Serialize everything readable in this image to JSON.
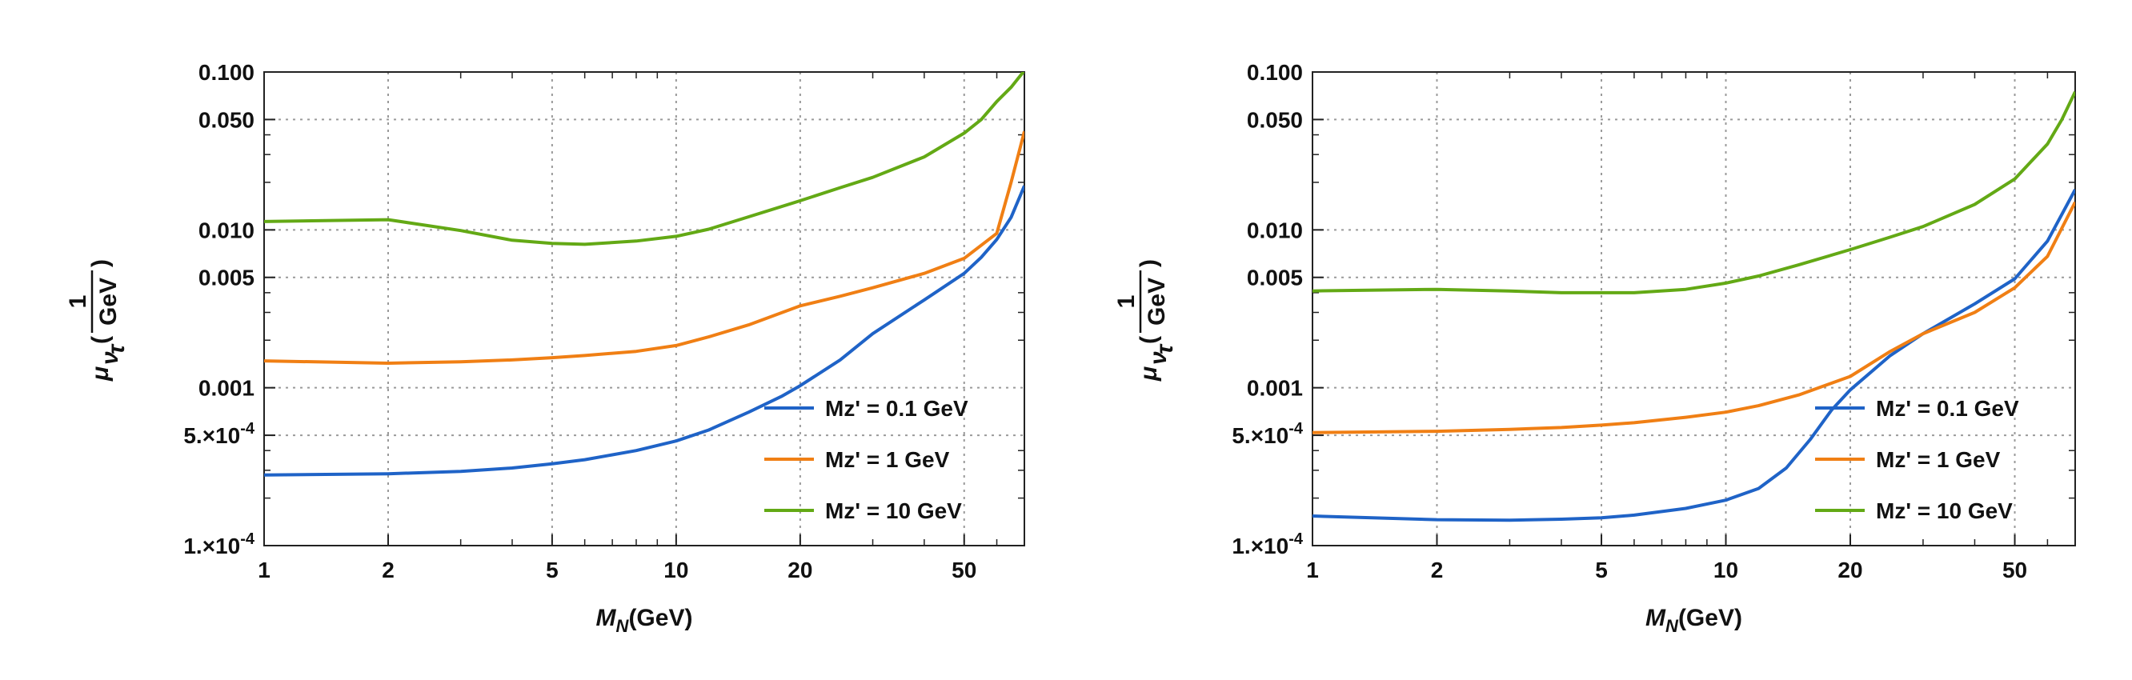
{
  "chart_data": [
    {
      "type": "line",
      "xscale": "log",
      "yscale": "log",
      "xlim": [
        1,
        70
      ],
      "ylim": [
        0.0001,
        0.1
      ],
      "xlabel": "M_N(GeV)",
      "xlabel_main": "M",
      "xlabel_sub": "N",
      "xlabel_rest": "(GeV)",
      "ylabel_top": "1",
      "ylabel_mu": "μ",
      "ylabel_nu": "ν",
      "ylabel_tau": "τ",
      "ylabel_paren_open": "(",
      "ylabel_unit": "GeV",
      "ylabel_paren_close": ")",
      "xticks": [
        {
          "value": 1,
          "label": "1"
        },
        {
          "value": 2,
          "label": "2"
        },
        {
          "value": 5,
          "label": "5"
        },
        {
          "value": 10,
          "label": "10"
        },
        {
          "value": 20,
          "label": "20"
        },
        {
          "value": 50,
          "label": "50"
        }
      ],
      "yticks": [
        {
          "value": 0.1,
          "label": "0.100"
        },
        {
          "value": 0.05,
          "label": "0.050"
        },
        {
          "value": 0.01,
          "label": "0.010"
        },
        {
          "value": 0.005,
          "label": "0.005"
        },
        {
          "value": 0.001,
          "label": "0.001"
        },
        {
          "value": 0.0005,
          "label": "5.×10",
          "exp": "-4"
        },
        {
          "value": 0.0001,
          "label": "1.×10",
          "exp": "-4"
        }
      ],
      "legend_position": "bottom-right",
      "series": [
        {
          "name": "Mz' = 0.1 GeV",
          "color": "#1f63c7",
          "x": [
            1,
            2,
            3,
            4,
            5,
            6,
            8,
            10,
            12,
            15,
            18,
            20,
            25,
            30,
            40,
            50,
            55,
            60,
            65,
            70
          ],
          "y": [
            0.00028,
            0.000285,
            0.000295,
            0.00031,
            0.00033,
            0.00035,
            0.0004,
            0.00046,
            0.00054,
            0.0007,
            0.00088,
            0.00103,
            0.0015,
            0.0022,
            0.0036,
            0.0053,
            0.0067,
            0.0087,
            0.012,
            0.019
          ]
        },
        {
          "name": "Mz' = 1 GeV",
          "color": "#f07f14",
          "x": [
            1,
            2,
            3,
            4,
            5,
            6,
            8,
            10,
            12,
            15,
            20,
            25,
            30,
            40,
            50,
            60,
            65,
            70
          ],
          "y": [
            0.00148,
            0.00143,
            0.00146,
            0.0015,
            0.00155,
            0.0016,
            0.0017,
            0.00185,
            0.0021,
            0.0025,
            0.0033,
            0.0038,
            0.0043,
            0.0053,
            0.0066,
            0.0095,
            0.02,
            0.042
          ]
        },
        {
          "name": "Mz' = 10 GeV",
          "color": "#63a915",
          "x": [
            1,
            2,
            3,
            4,
            5,
            6,
            8,
            10,
            12,
            15,
            20,
            25,
            30,
            40,
            50,
            55,
            60,
            65,
            70
          ],
          "y": [
            0.0113,
            0.0116,
            0.0099,
            0.0086,
            0.0082,
            0.0081,
            0.0085,
            0.0091,
            0.0101,
            0.0121,
            0.0153,
            0.0185,
            0.0215,
            0.029,
            0.041,
            0.05,
            0.065,
            0.08,
            0.102
          ]
        }
      ]
    },
    {
      "type": "line",
      "xscale": "log",
      "yscale": "log",
      "xlim": [
        1,
        70
      ],
      "ylim": [
        0.0001,
        0.1
      ],
      "xlabel": "M_N(GeV)",
      "xlabel_main": "M",
      "xlabel_sub": "N",
      "xlabel_rest": "(GeV)",
      "ylabel_top": "1",
      "ylabel_mu": "μ",
      "ylabel_nu": "ν",
      "ylabel_tau": "τ",
      "ylabel_paren_open": "(",
      "ylabel_unit": "GeV",
      "ylabel_paren_close": ")",
      "xticks": [
        {
          "value": 1,
          "label": "1"
        },
        {
          "value": 2,
          "label": "2"
        },
        {
          "value": 5,
          "label": "5"
        },
        {
          "value": 10,
          "label": "10"
        },
        {
          "value": 20,
          "label": "20"
        },
        {
          "value": 50,
          "label": "50"
        }
      ],
      "yticks": [
        {
          "value": 0.1,
          "label": "0.100"
        },
        {
          "value": 0.05,
          "label": "0.050"
        },
        {
          "value": 0.01,
          "label": "0.010"
        },
        {
          "value": 0.005,
          "label": "0.005"
        },
        {
          "value": 0.001,
          "label": "0.001"
        },
        {
          "value": 0.0005,
          "label": "5.×10",
          "exp": "-4"
        },
        {
          "value": 0.0001,
          "label": "1.×10",
          "exp": "-4"
        }
      ],
      "legend_position": "bottom-right",
      "series": [
        {
          "name": "Mz' = 0.1 GeV",
          "color": "#1f63c7",
          "x": [
            1,
            2,
            3,
            4,
            5,
            6,
            8,
            10,
            12,
            14,
            16,
            18,
            20,
            25,
            30,
            40,
            50,
            60,
            70
          ],
          "y": [
            0.000154,
            0.000146,
            0.000145,
            0.000147,
            0.00015,
            0.000156,
            0.000172,
            0.000194,
            0.00023,
            0.00031,
            0.00047,
            0.00072,
            0.00097,
            0.0016,
            0.0022,
            0.0034,
            0.0049,
            0.0085,
            0.018
          ]
        },
        {
          "name": "Mz' = 1 GeV",
          "color": "#f07f14",
          "x": [
            1,
            2,
            3,
            4,
            5,
            6,
            8,
            10,
            12,
            15,
            20,
            25,
            30,
            40,
            50,
            60,
            70
          ],
          "y": [
            0.00052,
            0.00053,
            0.000545,
            0.00056,
            0.00058,
            0.0006,
            0.00065,
            0.0007,
            0.00077,
            0.0009,
            0.00118,
            0.0017,
            0.0022,
            0.003,
            0.0043,
            0.0068,
            0.015
          ]
        },
        {
          "name": "Mz' = 10 GeV",
          "color": "#63a915",
          "x": [
            1,
            2,
            3,
            4,
            5,
            6,
            8,
            10,
            12,
            15,
            20,
            25,
            30,
            40,
            50,
            60,
            65,
            70
          ],
          "y": [
            0.0041,
            0.0042,
            0.0041,
            0.004,
            0.004,
            0.004,
            0.0042,
            0.0046,
            0.0051,
            0.006,
            0.0075,
            0.009,
            0.0105,
            0.0145,
            0.021,
            0.035,
            0.05,
            0.075
          ]
        }
      ]
    }
  ]
}
